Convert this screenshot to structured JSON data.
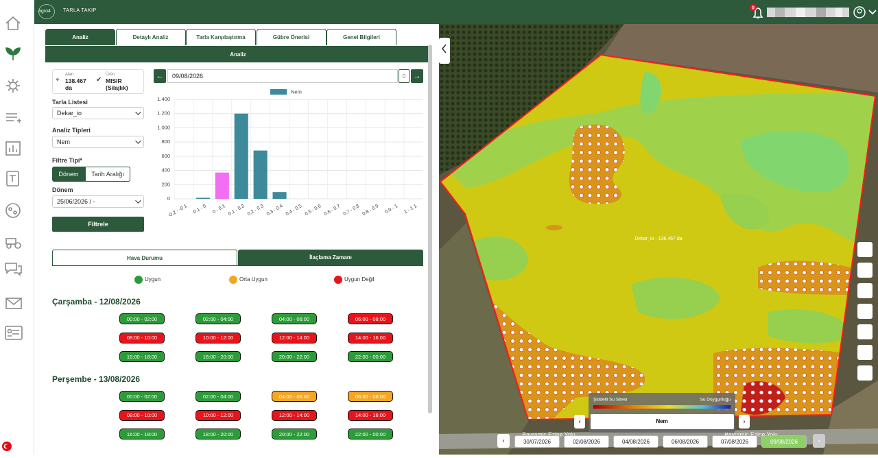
{
  "header": {
    "logo": "agro4",
    "app": "TARLA TAKIP",
    "notifications": "0"
  },
  "tabs": [
    "Analiz",
    "Detaylı Analiz",
    "Tarla Karşılaştırma",
    "Gübre Önerisi",
    "Genel Bilgileri"
  ],
  "panel_title": "Analiz",
  "info": {
    "area_label": "Alan",
    "area": "138.467 da",
    "crop_label": "Ürün",
    "crop": "MISIR (Silajlık)"
  },
  "form": {
    "field_list_label": "Tarla Listesi",
    "field_list": "Dekar_io",
    "analysis_label": "Analiz Tipleri",
    "analysis": "Nem",
    "filter_label": "Filtre Tipi*",
    "filter_options": [
      "Dönem",
      "Tarih Aralığı"
    ],
    "period_label": "Dönem",
    "period": "25/06/2026 / -",
    "submit": "Filtrele"
  },
  "chart_date": "09/08/2026",
  "chart_data": {
    "type": "bar",
    "categories": [
      "-0.2 - -0.1",
      "-0.1 - 0",
      "0 - 0.1",
      "0.1 - 0.2",
      "0.2 - 0.3",
      "0.3 - 0.4",
      "0.4 - 0.5",
      "0.5 - 0.6",
      "0.6 - 0.7",
      "0.7 - 0.8",
      "0.8 - 0.9",
      "0.9 - 1",
      "1 - 1.1"
    ],
    "series": [
      {
        "name": "Nem",
        "color": "#3d8a9b",
        "values": [
          0,
          15,
          370,
          1200,
          680,
          95,
          0,
          0,
          0,
          0,
          0,
          0,
          0
        ],
        "colors": [
          "#3d8a9b",
          "#3d8a9b",
          "#f26ef2",
          "#3d8a9b",
          "#3d8a9b",
          "#3d8a9b",
          "#3d8a9b",
          "#3d8a9b",
          "#3d8a9b",
          "#3d8a9b",
          "#3d8a9b",
          "#3d8a9b",
          "#3d8a9b"
        ]
      }
    ],
    "ylim": [
      0,
      1400
    ],
    "yticks": [
      0,
      200,
      400,
      600,
      800,
      {
        "value": 1000,
        "label": "1.000"
      },
      {
        "value": 1200,
        "label": "1.200"
      },
      {
        "value": 1400,
        "label": "1.400"
      }
    ],
    "grid": true
  },
  "weather": {
    "tabs": [
      "Hava Durumu",
      "İlaçlama Zamanı"
    ],
    "legend": [
      {
        "label": "Uygun",
        "color": "#2e9b3a"
      },
      {
        "label": "Orta Uygun",
        "color": "#f5a623"
      },
      {
        "label": "Uygun Değil",
        "color": "#e8141b"
      }
    ],
    "days": [
      {
        "title": "Çarşamba - 12/08/2026",
        "slots": [
          {
            "label": "00:00 - 02:00",
            "color": "#2e9b3a"
          },
          {
            "label": "02:00 - 04:00",
            "color": "#2e9b3a"
          },
          {
            "label": "04:00 - 06:00",
            "color": "#2e9b3a"
          },
          {
            "label": "06:00 - 08:00",
            "color": "#e8141b"
          },
          {
            "label": "08:00 - 10:00",
            "color": "#e8141b"
          },
          {
            "label": "10:00 - 12:00",
            "color": "#e8141b"
          },
          {
            "label": "12:00 - 14:00",
            "color": "#e8141b"
          },
          {
            "label": "14:00 - 16:00",
            "color": "#e8141b"
          },
          {
            "label": "16:00 - 18:00",
            "color": "#2e9b3a"
          },
          {
            "label": "18:00 - 20:00",
            "color": "#2e9b3a"
          },
          {
            "label": "20:00 - 22:00",
            "color": "#2e9b3a"
          },
          {
            "label": "22:00 - 00:00",
            "color": "#2e9b3a"
          }
        ]
      },
      {
        "title": "Perşembe - 13/08/2026",
        "slots": [
          {
            "label": "00:00 - 02:00",
            "color": "#2e9b3a"
          },
          {
            "label": "02:00 - 04:00",
            "color": "#2e9b3a"
          },
          {
            "label": "04:00 - 06:00",
            "color": "#f5a623"
          },
          {
            "label": "06:00 - 08:00",
            "color": "#f5a623"
          },
          {
            "label": "08:00 - 10:00",
            "color": "#e8141b"
          },
          {
            "label": "10:00 - 12:00",
            "color": "#e8141b"
          },
          {
            "label": "12:00 - 14:00",
            "color": "#e8141b"
          },
          {
            "label": "14:00 - 16:00",
            "color": "#e8141b"
          },
          {
            "label": "16:00 - 18:00",
            "color": "#2e9b3a"
          },
          {
            "label": "18:00 - 20:00",
            "color": "#2e9b3a"
          },
          {
            "label": "20:00 - 22:00",
            "color": "#2e9b3a"
          },
          {
            "label": "22:00 - 00:00",
            "color": "#2e9b3a"
          }
        ]
      }
    ]
  },
  "map": {
    "field_label": "Dekar_io - 138.467 da",
    "road": "Bayramiç Ezine Yolu",
    "legend_low": "Şiddetli Su Stresi",
    "legend_high": "Su Doygunluğu",
    "layer": "Nem",
    "dates": [
      "30/07/2026",
      "02/08/2026",
      "04/08/2026",
      "06/08/2026",
      "07/08/2026",
      "09/08/2026"
    ]
  }
}
